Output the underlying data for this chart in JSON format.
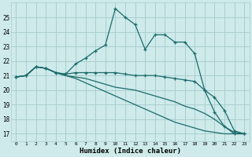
{
  "xlabel": "Humidex (Indice chaleur)",
  "bg_color": "#ceeaea",
  "grid_color": "#aacfcf",
  "line_color": "#1a6b6b",
  "xlim": [
    -0.5,
    23.5
  ],
  "ylim": [
    16.5,
    26.0
  ],
  "yticks": [
    17,
    18,
    19,
    20,
    21,
    22,
    23,
    24,
    25
  ],
  "xticks": [
    0,
    1,
    2,
    3,
    4,
    5,
    6,
    7,
    8,
    9,
    10,
    11,
    12,
    13,
    14,
    15,
    16,
    17,
    18,
    19,
    20,
    21,
    22,
    23
  ],
  "line1_x": [
    0,
    1,
    2,
    3,
    4,
    5,
    6,
    7,
    8,
    9,
    10,
    11,
    12,
    13,
    14,
    15,
    16,
    17,
    18,
    19,
    20,
    21,
    22,
    23
  ],
  "line1_y": [
    20.9,
    21.0,
    21.6,
    21.5,
    21.2,
    21.1,
    21.8,
    22.2,
    22.7,
    23.1,
    25.6,
    25.0,
    24.5,
    22.8,
    23.8,
    23.8,
    23.3,
    23.3,
    22.5,
    20.0,
    19.5,
    18.6,
    17.2,
    17.0
  ],
  "line2_x": [
    0,
    1,
    2,
    3,
    4,
    5,
    6,
    7,
    8,
    9,
    10,
    11,
    12,
    13,
    14,
    15,
    16,
    17,
    18,
    19,
    20,
    21,
    22,
    23
  ],
  "line2_y": [
    20.9,
    21.0,
    21.6,
    21.5,
    21.2,
    21.1,
    21.2,
    21.2,
    21.2,
    21.2,
    21.2,
    21.1,
    21.0,
    21.0,
    21.0,
    20.9,
    20.8,
    20.7,
    20.6,
    20.0,
    18.5,
    17.5,
    17.0,
    17.0
  ],
  "line3_x": [
    0,
    1,
    2,
    3,
    4,
    5,
    6,
    7,
    8,
    9,
    10,
    11,
    12,
    13,
    14,
    15,
    16,
    17,
    18,
    19,
    20,
    21,
    22,
    23
  ],
  "line3_y": [
    20.9,
    21.0,
    21.6,
    21.5,
    21.2,
    21.0,
    20.9,
    20.8,
    20.6,
    20.4,
    20.2,
    20.1,
    20.0,
    19.8,
    19.6,
    19.4,
    19.2,
    18.9,
    18.7,
    18.4,
    18.0,
    17.5,
    17.1,
    17.0
  ],
  "line4_x": [
    0,
    1,
    2,
    3,
    4,
    5,
    6,
    7,
    8,
    9,
    10,
    11,
    12,
    13,
    14,
    15,
    16,
    17,
    18,
    19,
    20,
    21,
    22,
    23
  ],
  "line4_y": [
    20.9,
    21.0,
    21.6,
    21.5,
    21.2,
    21.0,
    20.8,
    20.5,
    20.2,
    19.9,
    19.6,
    19.3,
    19.0,
    18.7,
    18.4,
    18.1,
    17.8,
    17.6,
    17.4,
    17.2,
    17.1,
    17.0,
    17.0,
    17.0
  ]
}
